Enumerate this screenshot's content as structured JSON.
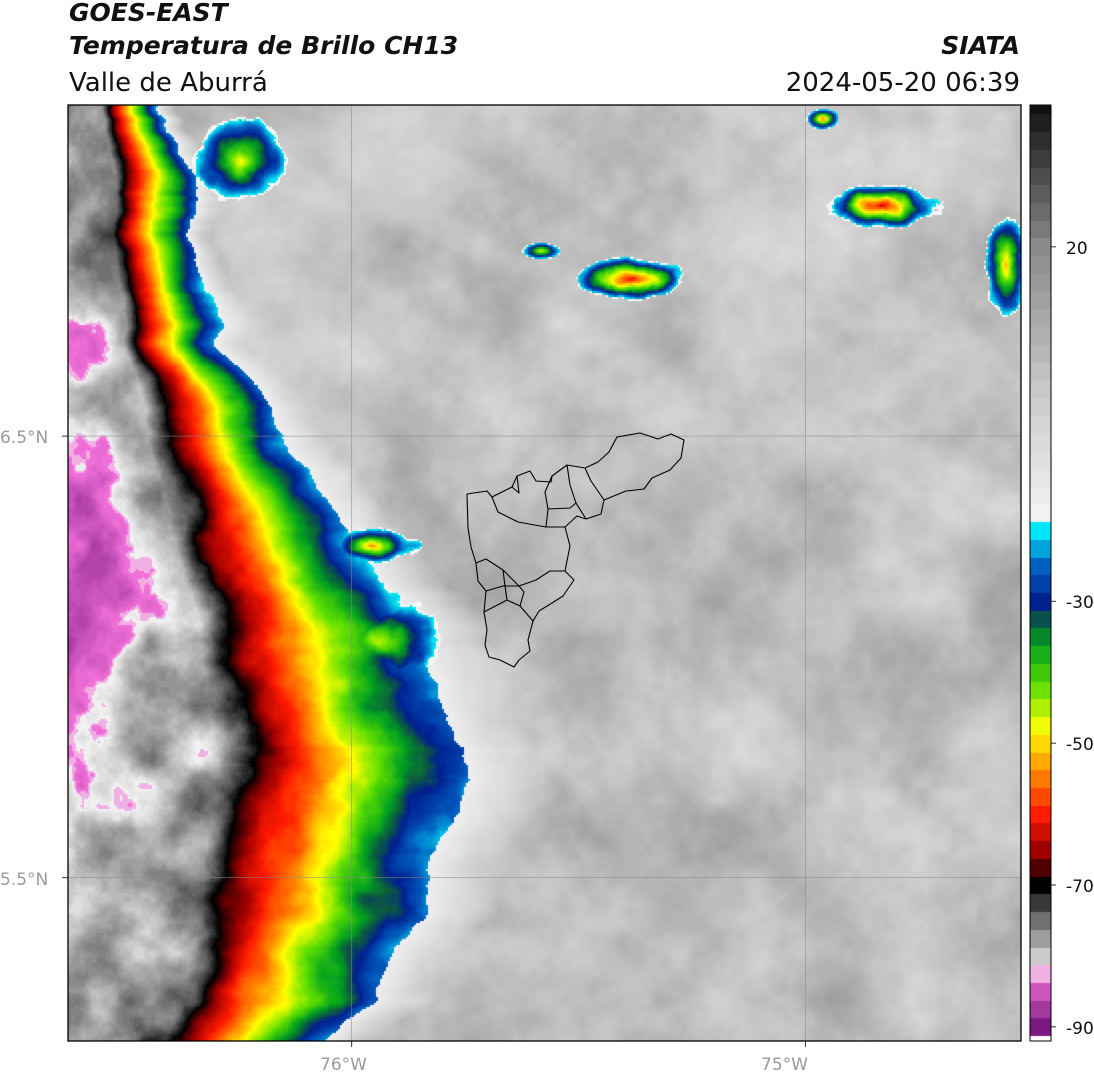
{
  "header": {
    "satellite": "GOES-EAST",
    "product": "Temperatura de Brillo CH13",
    "region": "Valle de Aburrá",
    "agency": "SIATA",
    "timestamp": "2024-05-20 06:39"
  },
  "map": {
    "lon_range": [
      -76.625,
      -74.525
    ],
    "lat_range": [
      5.13,
      7.25
    ],
    "lon_ticks": [
      {
        "value": -76,
        "label": "76°W"
      },
      {
        "value": -75,
        "label": "75°W"
      }
    ],
    "lat_ticks": [
      {
        "value": 6.5,
        "label": "6.5°N"
      },
      {
        "value": 5.5,
        "label": "5.5°N"
      }
    ],
    "gridlines": true,
    "boundary": "Valle de Aburrá municipalities outline (black)"
  },
  "colorbar": {
    "range": [
      -92,
      40
    ],
    "ticks": [
      {
        "value": 20,
        "label": "20"
      },
      {
        "value": -30,
        "label": "-30"
      },
      {
        "value": -50,
        "label": "-50"
      },
      {
        "value": -70,
        "label": "-70"
      },
      {
        "value": -90,
        "label": "-90"
      }
    ],
    "stops": [
      {
        "v": -92,
        "c": "#ffffff"
      },
      {
        "v": -90,
        "c": "#7a1a80"
      },
      {
        "v": -83,
        "c": "#f070d8"
      },
      {
        "v": -82,
        "c": "#f0f0f0"
      },
      {
        "v": -75,
        "c": "#707070"
      },
      {
        "v": -70,
        "c": "#000000"
      },
      {
        "v": -65,
        "c": "#a00000"
      },
      {
        "v": -60,
        "c": "#ff1a00"
      },
      {
        "v": -54,
        "c": "#ff8c00"
      },
      {
        "v": -48,
        "c": "#ffff00"
      },
      {
        "v": -42,
        "c": "#60e000"
      },
      {
        "v": -36,
        "c": "#00a020"
      },
      {
        "v": -33,
        "c": "#0c5a40"
      },
      {
        "v": -30,
        "c": "#002090"
      },
      {
        "v": -25,
        "c": "#0060c0"
      },
      {
        "v": -20,
        "c": "#00e8f8"
      },
      {
        "v": -19.9,
        "c": "#f8f8f8"
      },
      {
        "v": 0,
        "c": "#c8c8c8"
      },
      {
        "v": 20,
        "c": "#8a8a8a"
      },
      {
        "v": 40,
        "c": "#101010"
      }
    ]
  }
}
